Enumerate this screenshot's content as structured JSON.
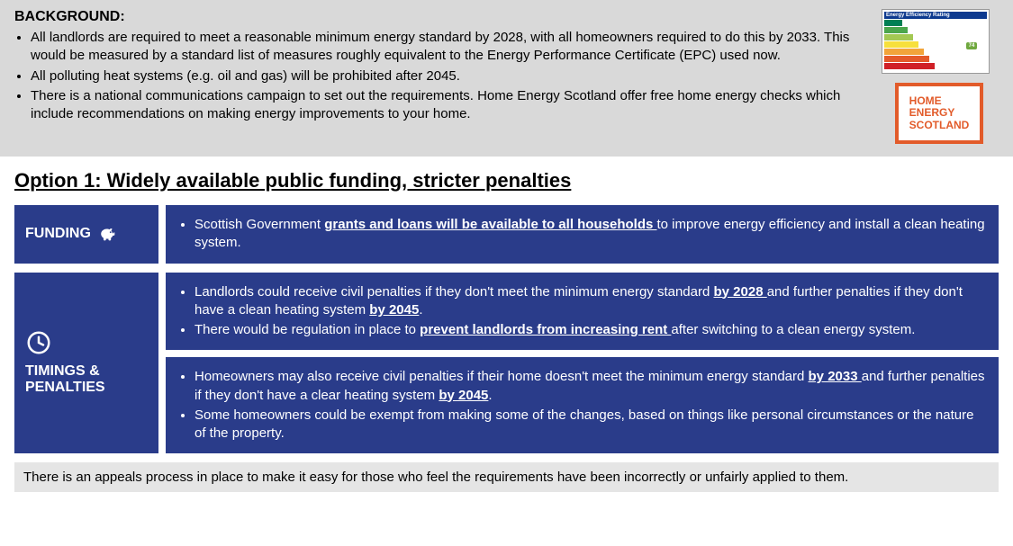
{
  "background": {
    "heading": "BACKGROUND:",
    "bullets": [
      "All landlords are required to meet a reasonable minimum energy standard by 2028, with all homeowners required to do this by 2033. This would be measured by a standard list of measures roughly equivalent to the Energy Performance Certificate (EPC) used now.",
      "All polluting heat systems (e.g. oil and gas) will be prohibited after 2045.",
      "There is a national communications campaign to set out the requirements. Home Energy Scotland offer free home energy checks which include recommendations on making energy improvements to your home."
    ],
    "epc_label": "Energy Efficiency Rating",
    "epc_value": "74",
    "hes_line1": "HOME",
    "hes_line2": "ENERGY",
    "hes_line3": "SCOTLAND"
  },
  "option_title": "Option 1: Widely available public funding, stricter penalties",
  "funding": {
    "label": "FUNDING",
    "text_pre": "Scottish Government ",
    "text_u": "grants and loans will be available to all households ",
    "text_post": "to improve energy efficiency and install a clean heating system."
  },
  "timings": {
    "label_line1": "TIMINGS &",
    "label_line2": "PENALTIES",
    "panel1": {
      "b1_pre": "Landlords could receive civil penalties if they don't meet the minimum energy standard ",
      "b1_u1": "by 2028 ",
      "b1_mid": "and further penalties if they don't have a clean heating system ",
      "b1_u2": "by 2045",
      "b1_post": ".",
      "b2_pre": "There would be regulation in place to ",
      "b2_u": "prevent landlords from increasing rent ",
      "b2_post": "after switching to a clean energy system."
    },
    "panel2": {
      "b1_pre": "Homeowners may also receive civil penalties if their home doesn't meet the minimum energy standard ",
      "b1_u1": "by 2033 ",
      "b1_mid": "and further penalties if they don't have a clear heating system ",
      "b1_u2": "by 2045",
      "b1_post": ".",
      "b2": "Some homeowners could be exempt from making some of the changes, based on things like personal circumstances or the nature of the property."
    }
  },
  "footer": "There is an appeals process in place to make it easy for those who feel the requirements have been incorrectly or unfairly applied to them.",
  "colors": {
    "panel_blue": "#2a3c8a",
    "bg_grey": "#d9d9d9",
    "footer_grey": "#e5e5e5",
    "hes_orange": "#e25b2a"
  },
  "epc_bars": [
    {
      "color": "#008054",
      "w": 20,
      "letter": "A"
    },
    {
      "color": "#4ca64c",
      "w": 26,
      "letter": "B"
    },
    {
      "color": "#a3c853",
      "w": 32,
      "letter": "C"
    },
    {
      "color": "#f7e03c",
      "w": 38,
      "letter": "D"
    },
    {
      "color": "#f2a43a",
      "w": 44,
      "letter": "E"
    },
    {
      "color": "#e45a2a",
      "w": 50,
      "letter": "F"
    },
    {
      "color": "#d02027",
      "w": 56,
      "letter": "G"
    }
  ]
}
